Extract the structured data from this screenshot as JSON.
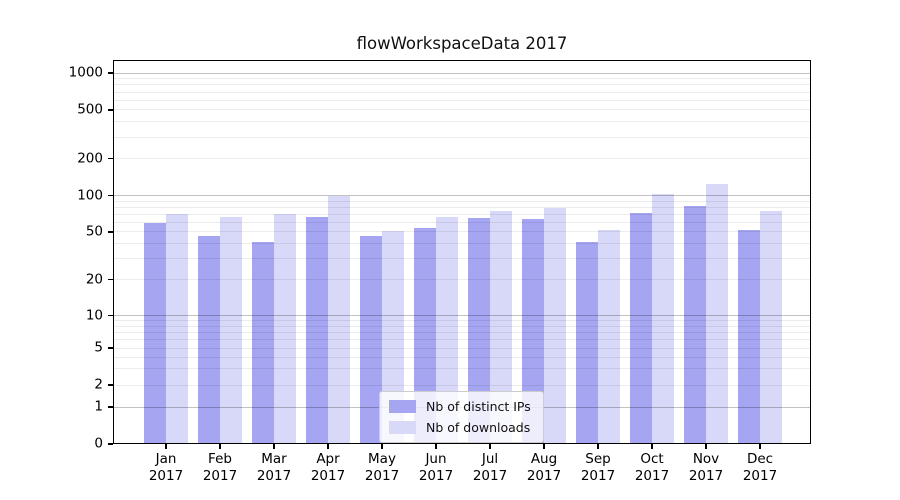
{
  "title": "flowWorkspaceData 2017",
  "chart_data": {
    "type": "bar",
    "title": "flowWorkspaceData 2017",
    "yscale": "symlog",
    "categories": [
      "Jan 2017",
      "Feb 2017",
      "Mar 2017",
      "Apr 2017",
      "May 2017",
      "Jun 2017",
      "Jul 2017",
      "Aug 2017",
      "Sep 2017",
      "Oct 2017",
      "Nov 2017",
      "Dec 2017"
    ],
    "month_labels": [
      "Jan",
      "Feb",
      "Mar",
      "Apr",
      "May",
      "Jun",
      "Jul",
      "Aug",
      "Sep",
      "Oct",
      "Nov",
      "Dec"
    ],
    "year_label": "2017",
    "series": [
      {
        "name": "Nb of distinct IPs",
        "color": "#a5a5f1",
        "values": [
          59,
          46,
          41,
          66,
          46,
          54,
          65,
          64,
          41,
          72,
          82,
          52
        ]
      },
      {
        "name": "Nb of downloads",
        "color": "#d8d8f9",
        "values": [
          71,
          66,
          70,
          100,
          51,
          66,
          75,
          79,
          52,
          103,
          124,
          75
        ]
      }
    ],
    "y_ticks": [
      0,
      1,
      2,
      5,
      10,
      20,
      50,
      100,
      200,
      500,
      1000
    ],
    "ylim": [
      0,
      1300
    ],
    "grid": true,
    "grid_orientation": "horizontal",
    "legend_position": "lower center"
  },
  "colors": {
    "distinct_ips": "#a5a5f1",
    "downloads": "#d8d8f9",
    "spine": "#000000",
    "background": "#ffffff"
  }
}
